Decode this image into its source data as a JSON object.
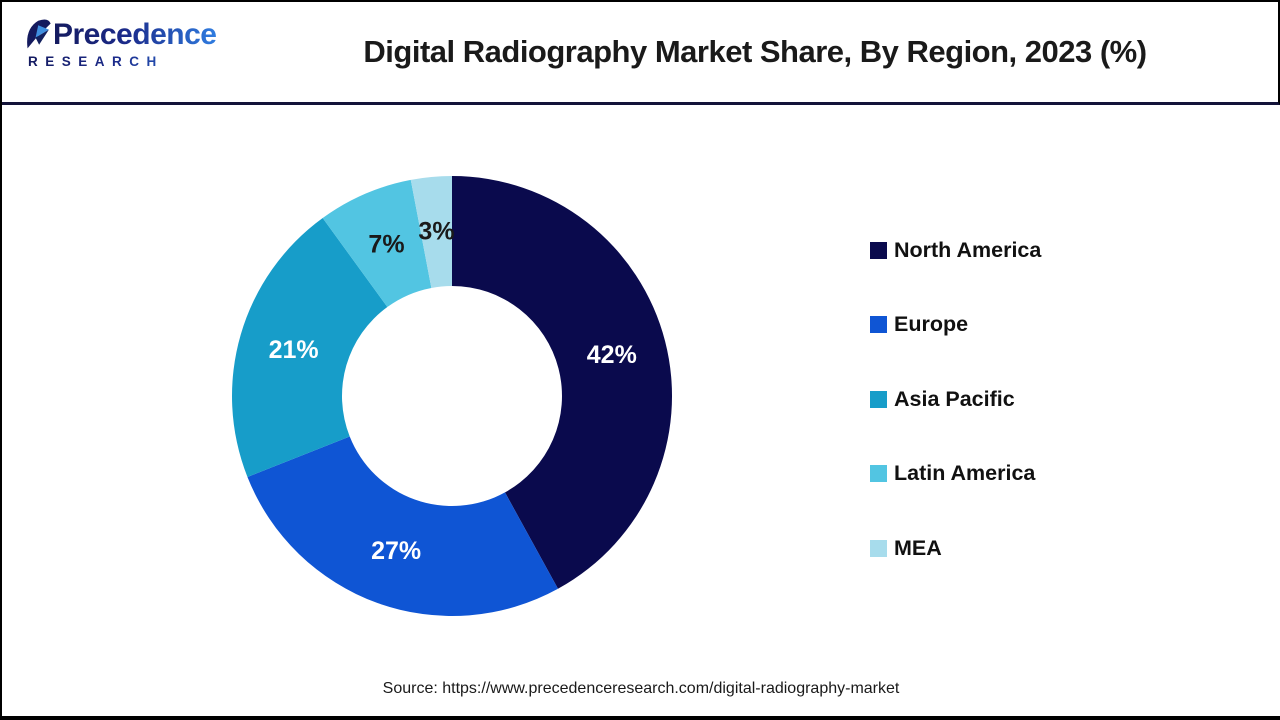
{
  "header": {
    "logo": {
      "name": "Precedence",
      "subname": "RESEARCH"
    },
    "title": "Digital Radiography Market Share, By Region, 2023 (%)"
  },
  "chart_data": {
    "type": "pie",
    "subtype": "donut",
    "title": "Digital Radiography Market Share, By Region, 2023 (%)",
    "categories": [
      "North America",
      "Europe",
      "Asia Pacific",
      "Latin America",
      "MEA"
    ],
    "values": [
      42,
      27,
      21,
      7,
      3
    ],
    "unit": "%",
    "colors": [
      "#0a0a4d",
      "#0f55d4",
      "#179dc9",
      "#52c5e2",
      "#a7dcec"
    ],
    "slice_label_colors": [
      "#ffffff",
      "#ffffff",
      "#ffffff",
      "#1a1a1a",
      "#1a1a1a"
    ],
    "start_angle_deg": 0,
    "direction": "clockwise",
    "inner_radius_ratio": 0.5,
    "legend_position": "right",
    "legend_entries": [
      "North America",
      "Europe",
      "Asia Pacific",
      "Latin America",
      "MEA"
    ]
  },
  "source": {
    "text": "Source: https://www.precedenceresearch.com/digital-radiography-market"
  }
}
